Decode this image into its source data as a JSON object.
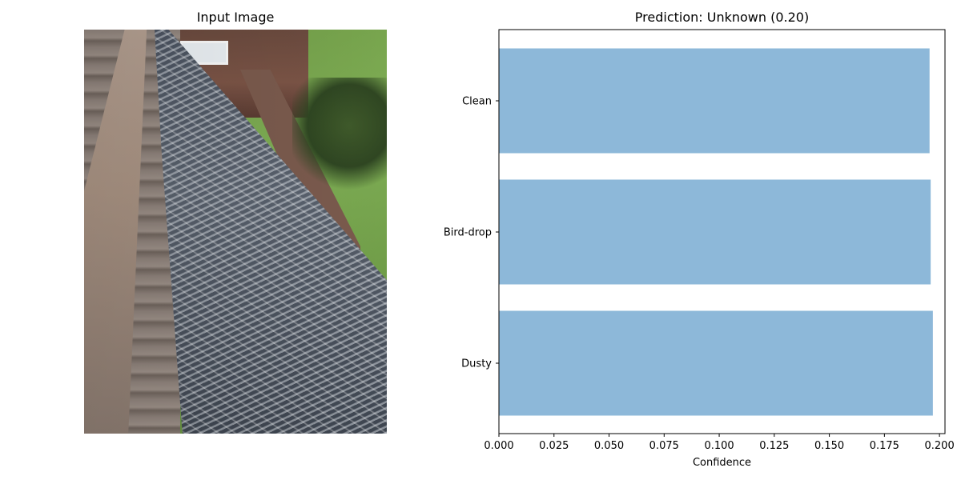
{
  "image_panel": {
    "title": "Input Image"
  },
  "chart_data": {
    "type": "bar",
    "orientation": "horizontal",
    "title": "Prediction: Unknown (0.20)",
    "categories": [
      "Dusty",
      "Bird-drop",
      "Clean"
    ],
    "values": [
      0.197,
      0.196,
      0.1955
    ],
    "xlabel": "Confidence",
    "ylabel": "",
    "xlim": [
      0,
      0.2025
    ],
    "xticks": [
      "0.000",
      "0.025",
      "0.050",
      "0.075",
      "0.100",
      "0.125",
      "0.150",
      "0.175",
      "0.200"
    ],
    "bar_color": "#8db8d9",
    "grid": false
  }
}
